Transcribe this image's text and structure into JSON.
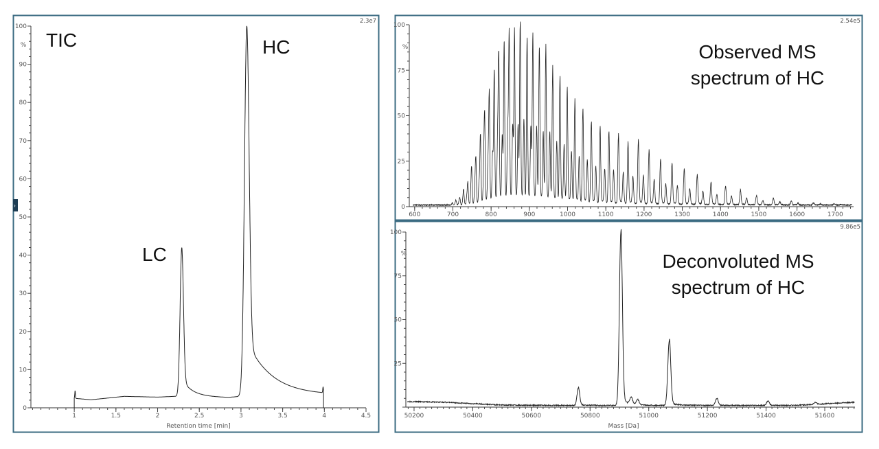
{
  "chart_data": [
    {
      "type": "line",
      "title": "TIC",
      "intensity_scale": "2.3e7",
      "xlabel": "Retention time [min]",
      "ylabel": "%",
      "xlim": [
        0.48,
        4.5
      ],
      "ylim": [
        0,
        100
      ],
      "x_ticks": [
        "1",
        "1.5",
        "2",
        "2.5",
        "3",
        "3.5",
        "4",
        "4.5"
      ],
      "y_ticks": [
        "0",
        "10",
        "20",
        "30",
        "40",
        "50",
        "60",
        "70",
        "80",
        "90",
        "100"
      ],
      "annotations": [
        {
          "text": "LC",
          "x": 2.29,
          "y": 42
        },
        {
          "text": "HC",
          "x": 3.07,
          "y": 100
        }
      ],
      "trace_range": [
        1.0,
        3.99
      ],
      "baseline": [
        [
          1.0,
          2.5
        ],
        [
          1.2,
          2.1
        ],
        [
          1.6,
          3.0
        ],
        [
          2.0,
          2.8
        ],
        [
          2.2,
          3.0
        ],
        [
          2.5,
          2.9
        ],
        [
          2.85,
          2.7
        ],
        [
          3.0,
          3.0
        ],
        [
          4.0,
          3.3
        ]
      ],
      "peaks": [
        {
          "name": "injection spike",
          "rt": 1.01,
          "height": 2.0,
          "width": 0.004,
          "tail_fraction": 0,
          "tail": 0.01
        },
        {
          "name": "LC",
          "rt": 2.29,
          "height": 39,
          "width": 0.02,
          "tail_fraction": 0.12,
          "tail": 0.12
        },
        {
          "name": "HC",
          "rt": 3.07,
          "height": 97,
          "width": 0.028,
          "tail_fraction": 0.15,
          "tail": 0.3
        },
        {
          "name": "end spike",
          "rt": 3.985,
          "height": 1.5,
          "width": 0.004,
          "tail_fraction": 0,
          "tail": 0.01
        }
      ],
      "grid": false,
      "collapse_handle": "›"
    },
    {
      "type": "line",
      "title": "Observed MS spectrum of HC",
      "title_lines": [
        "Observed MS",
        "spectrum of HC"
      ],
      "intensity_scale": "2.54e5",
      "xlabel": "",
      "ylabel": "%",
      "xlim": [
        586,
        1748
      ],
      "ylim": [
        0,
        100
      ],
      "x_ticks": [
        "600",
        "700",
        "800",
        "900",
        "1000",
        "1100",
        "1200",
        "1300",
        "1400",
        "1500",
        "1600",
        "1700"
      ],
      "y_ticks": [
        "0",
        "25",
        "50",
        "75",
        "100"
      ],
      "charge_state_peaks_mz": [
        698,
        708,
        718,
        728,
        739,
        749,
        760,
        772,
        783,
        795,
        808,
        820,
        834,
        847,
        861,
        876,
        894,
        909,
        926,
        943,
        961,
        980,
        999,
        1019,
        1040,
        1062,
        1085,
        1108,
        1133,
        1158,
        1185,
        1213,
        1243,
        1273,
        1305,
        1339,
        1375,
        1413,
        1452,
        1494,
        1538,
        1585,
        1643,
        1697
      ],
      "charge_state_peaks_intensity": [
        1.2,
        2.5,
        3.7,
        8,
        12,
        18,
        25,
        38,
        46,
        59,
        72,
        79,
        87,
        90,
        91,
        97,
        89,
        89,
        83,
        83,
        72,
        68,
        61,
        55,
        51,
        44,
        41,
        39,
        37,
        33,
        34,
        29,
        24,
        22,
        19,
        16,
        12,
        10,
        8,
        5,
        3.5,
        2.2,
        1.2,
        0.6
      ],
      "adduct_relative_intensity": 0.45,
      "grid": false
    },
    {
      "type": "line",
      "title": "Deconvoluted MS spectrum of HC",
      "title_lines": [
        "Deconvoluted MS",
        "spectrum of HC"
      ],
      "intensity_scale": "9.86e5",
      "xlabel": "Mass [Da]",
      "ylabel": "%",
      "xlim": [
        50172,
        51703
      ],
      "ylim": [
        0,
        100
      ],
      "x_ticks": [
        "50200",
        "50400",
        "50600",
        "50800",
        "51000",
        "51200",
        "51400",
        "51600"
      ],
      "y_ticks": [
        "25",
        "50",
        "75",
        "100"
      ],
      "peaks": [
        {
          "mass": 50760,
          "intensity": 10
        },
        {
          "mass": 50905,
          "intensity": 99
        },
        {
          "mass": 50940,
          "intensity": 4
        },
        {
          "mass": 50962,
          "intensity": 3
        },
        {
          "mass": 51070,
          "intensity": 37
        },
        {
          "mass": 51232,
          "intensity": 4
        },
        {
          "mass": 51406,
          "intensity": 2.5
        },
        {
          "mass": 51568,
          "intensity": 1
        }
      ],
      "baseline": [
        [
          50172,
          3.2
        ],
        [
          50300,
          2.8
        ],
        [
          50500,
          1.2
        ],
        [
          50700,
          1.0
        ],
        [
          51500,
          1.0
        ],
        [
          51703,
          2.8
        ]
      ],
      "grid": false
    }
  ]
}
